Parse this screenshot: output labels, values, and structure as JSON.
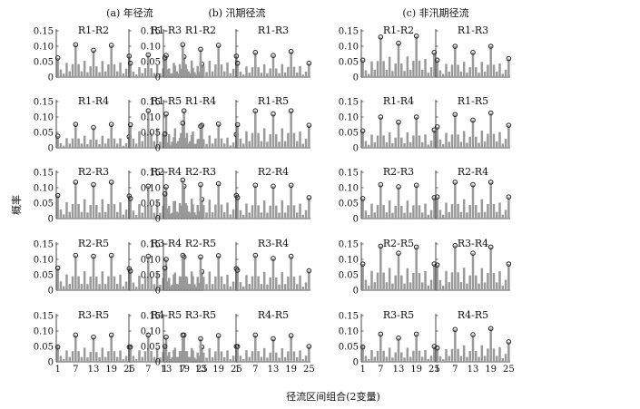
{
  "figure": {
    "y_axis_label": "概率",
    "x_axis_label": "径流区间组合(2变量)",
    "y_ticks": [
      "0",
      "0.05",
      "0.10",
      "0.15"
    ],
    "x_ticks": [
      "1",
      "7",
      "13",
      "19",
      "25"
    ],
    "bar_color": "#999999",
    "marker_color": "#222222"
  },
  "chart_data": [
    {
      "type": "bar",
      "title": "(a) 年径流",
      "ylim": [
        0,
        0.15
      ],
      "x": [
        1,
        25
      ],
      "panels": [
        {
          "label": "R1-R2",
          "peaks": [
            0.062,
            0.105,
            0.087,
            0.103,
            0.068
          ]
        },
        {
          "label": "R1-R3",
          "peaks": [
            0.045,
            0.072,
            0.07,
            0.066,
            0.042
          ]
        },
        {
          "label": "R1-R4",
          "peaks": [
            0.038,
            0.076,
            0.066,
            0.076,
            0.036
          ]
        },
        {
          "label": "R1-R5",
          "peaks": [
            0.075,
            0.12,
            0.11,
            0.12,
            0.073
          ]
        },
        {
          "label": "R2-R3",
          "peaks": [
            0.075,
            0.118,
            0.11,
            0.118,
            0.073
          ]
        },
        {
          "label": "R2-R4",
          "peaks": [
            0.065,
            0.105,
            0.103,
            0.105,
            0.062
          ]
        },
        {
          "label": "R2-R5",
          "peaks": [
            0.072,
            0.113,
            0.11,
            0.113,
            0.07
          ]
        },
        {
          "label": "R3-R4",
          "peaks": [
            0.062,
            0.11,
            0.1,
            0.108,
            0.06
          ]
        },
        {
          "label": "R3-R5",
          "peaks": [
            0.048,
            0.087,
            0.08,
            0.087,
            0.048
          ]
        },
        {
          "label": "R4-R5",
          "peaks": [
            0.048,
            0.087,
            0.08,
            0.087,
            0.048
          ]
        }
      ]
    },
    {
      "type": "bar",
      "title": "(b) 汛期径流",
      "ylim": [
        0,
        0.15
      ],
      "x": [
        1,
        25
      ],
      "panels": [
        {
          "label": "R1-R2",
          "peaks": [
            0.062,
            0.105,
            0.09,
            0.103,
            0.068
          ]
        },
        {
          "label": "R1-R3",
          "peaks": [
            0.045,
            0.08,
            0.07,
            0.083,
            0.045
          ]
        },
        {
          "label": "R1-R4",
          "peaks": [
            0.045,
            0.08,
            0.07,
            0.077,
            0.043
          ]
        },
        {
          "label": "R1-R5",
          "peaks": [
            0.075,
            0.12,
            0.11,
            0.12,
            0.073
          ]
        },
        {
          "label": "R2-R3",
          "peaks": [
            0.08,
            0.125,
            0.11,
            0.113,
            0.075
          ]
        },
        {
          "label": "R2-R4",
          "peaks": [
            0.068,
            0.108,
            0.105,
            0.108,
            0.068
          ]
        },
        {
          "label": "R2-R5",
          "peaks": [
            0.072,
            0.113,
            0.108,
            0.112,
            0.07
          ]
        },
        {
          "label": "R3-R4",
          "peaks": [
            0.065,
            0.113,
            0.103,
            0.11,
            0.063
          ]
        },
        {
          "label": "R3-R5",
          "peaks": [
            0.05,
            0.087,
            0.075,
            0.085,
            0.05
          ]
        },
        {
          "label": "R4-R5",
          "peaks": [
            0.05,
            0.087,
            0.075,
            0.085,
            0.05
          ]
        }
      ]
    },
    {
      "type": "bar",
      "title": "(c) 非汛期径流",
      "ylim": [
        0,
        0.15
      ],
      "x": [
        1,
        25
      ],
      "panels": [
        {
          "label": "R1-R2",
          "peaks": [
            0.055,
            0.13,
            0.11,
            0.133,
            0.08
          ]
        },
        {
          "label": "R1-R3",
          "peaks": [
            0.055,
            0.1,
            0.08,
            0.1,
            0.06
          ]
        },
        {
          "label": "R1-R4",
          "peaks": [
            0.055,
            0.1,
            0.083,
            0.1,
            0.058
          ]
        },
        {
          "label": "R1-R5",
          "peaks": [
            0.068,
            0.108,
            0.09,
            0.113,
            0.073
          ]
        },
        {
          "label": "R2-R3",
          "peaks": [
            0.065,
            0.11,
            0.103,
            0.108,
            0.068
          ]
        },
        {
          "label": "R2-R4",
          "peaks": [
            0.07,
            0.118,
            0.11,
            0.118,
            0.07
          ]
        },
        {
          "label": "R2-R5",
          "peaks": [
            0.085,
            0.143,
            0.12,
            0.14,
            0.085
          ]
        },
        {
          "label": "R3-R4",
          "peaks": [
            0.082,
            0.145,
            0.12,
            0.14,
            0.085
          ]
        },
        {
          "label": "R3-R5",
          "peaks": [
            0.048,
            0.09,
            0.077,
            0.09,
            0.05
          ]
        },
        {
          "label": "R4-R5",
          "peaks": [
            0.045,
            0.105,
            0.088,
            0.108,
            0.065
          ]
        }
      ]
    }
  ]
}
